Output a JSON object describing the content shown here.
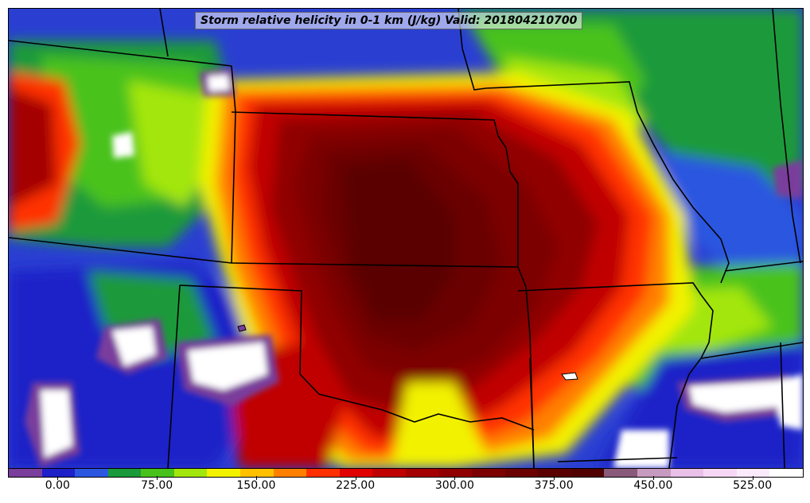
{
  "title": "Storm relative helicity in 0-1 km (J/kg) Valid: 201804210700",
  "colorbar": {
    "min": -37.5,
    "max": 562.5,
    "step": 25,
    "colors": [
      "#7a3e9c",
      "#1e20c8",
      "#2b57e0",
      "#1a9a3a",
      "#48c21a",
      "#a3e60d",
      "#f2f200",
      "#ffc000",
      "#ff8000",
      "#ff3000",
      "#e00000",
      "#c00000",
      "#a40000",
      "#900000",
      "#7c0000",
      "#6a0000",
      "#5a0000",
      "#500000",
      "#8a5a7a",
      "#c79ac0",
      "#e8c0e8",
      "#f6d8f6",
      "#fbeafb",
      "#ffffff"
    ],
    "ticks": [
      {
        "value": 0,
        "label": "0.00"
      },
      {
        "value": 75,
        "label": "75.00"
      },
      {
        "value": 150,
        "label": "150.00"
      },
      {
        "value": 225,
        "label": "225.00"
      },
      {
        "value": 300,
        "label": "300.00"
      },
      {
        "value": 375,
        "label": "375.00"
      },
      {
        "value": 450,
        "label": "450.00"
      },
      {
        "value": 525,
        "label": "525.00"
      }
    ]
  }
}
